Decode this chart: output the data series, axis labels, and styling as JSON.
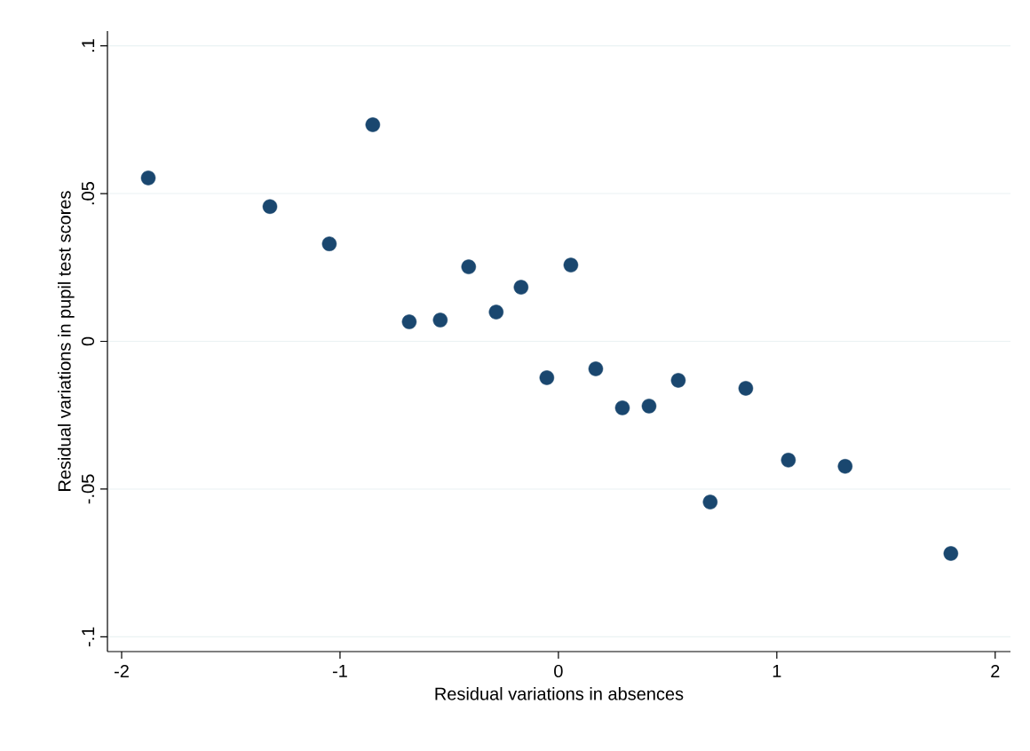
{
  "chart_data": {
    "type": "scatter",
    "xlabel": "Residual variations in absences",
    "ylabel": "Residual variations in pupil test scores",
    "x": [
      -1.878,
      -1.321,
      -1.049,
      -0.85,
      -0.683,
      -0.541,
      -0.411,
      -0.285,
      -0.171,
      -0.053,
      0.057,
      0.171,
      0.293,
      0.415,
      0.549,
      0.695,
      0.858,
      1.053,
      1.313,
      1.797
    ],
    "values": [
      0.0553,
      0.0456,
      0.033,
      0.0733,
      0.0066,
      0.0072,
      0.0252,
      0.0099,
      0.0183,
      -0.0123,
      0.0258,
      -0.0093,
      -0.0225,
      -0.0219,
      -0.0132,
      -0.0544,
      -0.0159,
      -0.0402,
      -0.0423,
      -0.0718
    ],
    "color": "#1a476f",
    "marker": "circle",
    "grid": "y",
    "xlim": [
      -2.065,
      2.07
    ],
    "ylim": [
      -0.105,
      0.105
    ],
    "xticks": [
      -2,
      -1,
      0,
      1,
      2
    ],
    "yticks": [
      {
        "value": -0.1,
        "label": "-.1"
      },
      {
        "value": -0.05,
        "label": "-.05"
      },
      {
        "value": 0,
        "label": "0"
      },
      {
        "value": 0.05,
        "label": ".05"
      },
      {
        "value": 0.1,
        "label": ".1"
      }
    ]
  }
}
